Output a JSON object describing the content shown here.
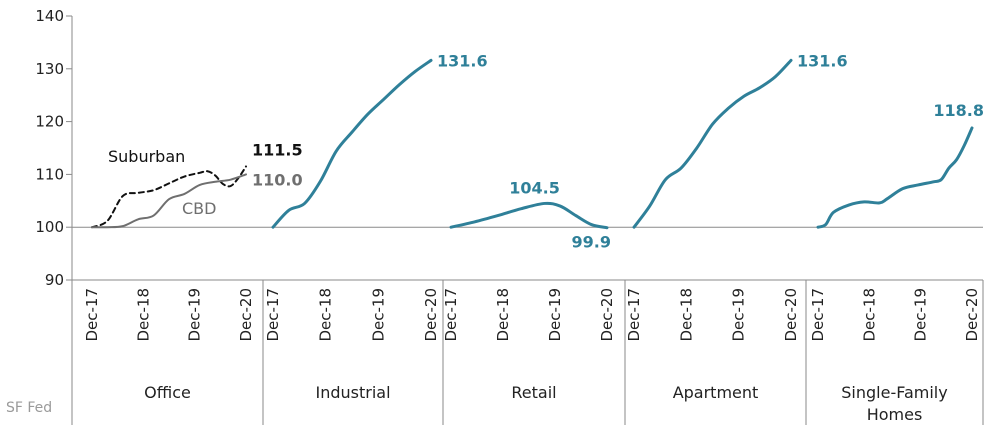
{
  "source_label": "SF Fed",
  "chart_data": {
    "type": "line",
    "ylim": [
      90,
      140
    ],
    "yticks": [
      90,
      100,
      110,
      120,
      130,
      140
    ],
    "x_tick_labels": [
      "Dec-17",
      "Dec-18",
      "Dec-19",
      "Dec-20"
    ],
    "colors": {
      "teal": "#2f8099",
      "office_cbd": "#6f6f6f",
      "office_suburban": "#111111"
    },
    "panels": [
      {
        "category": "Office",
        "series": [
          {
            "name": "Suburban",
            "dash": true,
            "color_key": "office_suburban",
            "x": [
              0,
              0.1,
              0.2,
              0.3,
              0.4,
              0.5,
              0.6,
              0.7,
              0.75,
              0.8,
              0.85,
              0.9,
              0.95,
              1.0
            ],
            "values": [
              100.0,
              101.2,
              105.9,
              106.5,
              107.0,
              108.3,
              109.6,
              110.3,
              110.6,
              109.8,
              108.2,
              107.8,
              109.3,
              111.5
            ],
            "end_label": "111.5"
          },
          {
            "name": "CBD",
            "dash": false,
            "color_key": "office_cbd",
            "x": [
              0,
              0.1,
              0.2,
              0.3,
              0.4,
              0.5,
              0.6,
              0.7,
              0.8,
              0.9,
              1.0
            ],
            "values": [
              100.0,
              100.0,
              100.2,
              101.5,
              102.2,
              105.3,
              106.3,
              108.0,
              108.6,
              109.0,
              110.0
            ],
            "end_label": "110.0"
          }
        ]
      },
      {
        "category": "Industrial",
        "series": [
          {
            "name": "",
            "color_key": "teal",
            "x": [
              0,
              0.1,
              0.2,
              0.3,
              0.4,
              0.5,
              0.6,
              0.7,
              0.8,
              0.9,
              1.0
            ],
            "values": [
              100.0,
              103.2,
              104.5,
              108.7,
              114.4,
              118.0,
              121.4,
              124.2,
              127.0,
              129.5,
              131.6
            ],
            "end_label": "131.6"
          }
        ]
      },
      {
        "category": "Retail",
        "series": [
          {
            "name": "",
            "color_key": "teal",
            "x": [
              0,
              0.15,
              0.3,
              0.45,
              0.6,
              0.7,
              0.8,
              0.9,
              1.0
            ],
            "values": [
              100.0,
              101.0,
              102.2,
              103.5,
              104.5,
              104.0,
              102.2,
              100.5,
              99.9
            ],
            "peak_label": "104.5",
            "end_label": "99.9"
          }
        ]
      },
      {
        "category": "Apartment",
        "series": [
          {
            "name": "",
            "color_key": "teal",
            "x": [
              0,
              0.1,
              0.2,
              0.3,
              0.4,
              0.5,
              0.6,
              0.7,
              0.8,
              0.9,
              1.0
            ],
            "values": [
              100.0,
              104.0,
              109.0,
              111.2,
              115.0,
              119.5,
              122.5,
              124.8,
              126.4,
              128.5,
              131.6
            ],
            "end_label": "131.6"
          }
        ]
      },
      {
        "category": "Single-Family Homes",
        "series": [
          {
            "name": "",
            "color_key": "teal",
            "x": [
              0,
              0.05,
              0.1,
              0.2,
              0.3,
              0.4,
              0.45,
              0.55,
              0.65,
              0.75,
              0.8,
              0.85,
              0.9,
              0.95,
              1.0
            ],
            "values": [
              100.0,
              100.5,
              102.8,
              104.2,
              104.8,
              104.6,
              105.4,
              107.3,
              108.0,
              108.6,
              109.0,
              111.2,
              112.8,
              115.5,
              118.8
            ],
            "end_label": "118.8"
          }
        ]
      }
    ]
  }
}
